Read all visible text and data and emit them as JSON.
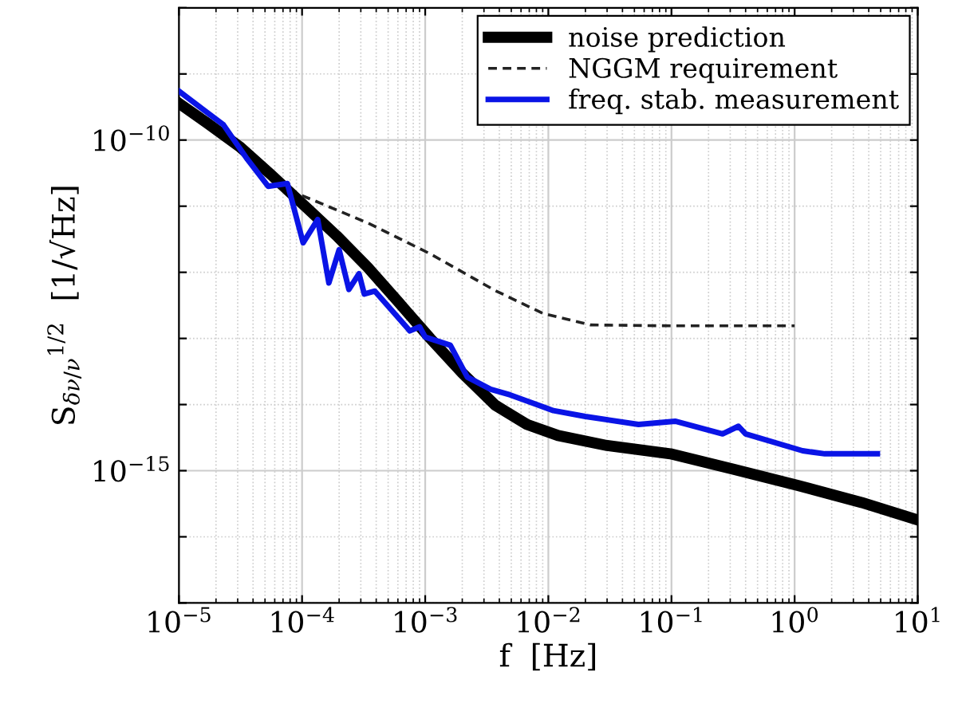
{
  "chart_data": {
    "type": "line",
    "xlabel": "f  [Hz]",
    "ylabel": "S$_{δν/ν}$$^{1/2}$  [1/√Hz]",
    "log": "xy",
    "grid": true,
    "legend": "top right",
    "xlim": [
      1e-05,
      10
    ],
    "ylim": [
      1e-17,
      1e-08
    ],
    "xticks": [
      {
        "value": 1e-05,
        "label": "10$^{−5}$"
      },
      {
        "value": 0.0001,
        "label": "10$^{−4}$"
      },
      {
        "value": 0.001,
        "label": "10$^{−3}$"
      },
      {
        "value": 0.01,
        "label": "10$^{−2}$"
      },
      {
        "value": 0.1,
        "label": "10$^{−1}$"
      },
      {
        "value": 1,
        "label": "10$^{0}$"
      },
      {
        "value": 10,
        "label": "10$^{1}$"
      }
    ],
    "yticks": [
      {
        "value": 1e-17,
        "label": null
      },
      {
        "value": 1e-16,
        "label": null
      },
      {
        "value": 1e-15,
        "label": "10$^{−15}$"
      },
      {
        "value": 1e-14,
        "label": null
      },
      {
        "value": 1e-13,
        "label": null
      },
      {
        "value": 1e-12,
        "label": null
      },
      {
        "value": 1e-11,
        "label": null
      },
      {
        "value": 1e-10,
        "label": "10$^{−10}$"
      },
      {
        "value": 1e-09,
        "label": null
      },
      {
        "value": 1e-08,
        "label": null
      }
    ],
    "series": [
      {
        "name": "noise prediction",
        "color": "#000000",
        "line_style": "solid",
        "x": [
          1e-05,
          1.7e-05,
          3.1e-05,
          5.6e-05,
          0.0001,
          0.00019,
          0.00034,
          0.00061,
          0.0011,
          0.002,
          0.0037,
          0.0067,
          0.012,
          0.03,
          0.098,
          0.32,
          1.06,
          3.5,
          10
        ],
        "values": [
          3.6e-10,
          1.8e-10,
          8e-11,
          3e-11,
          1.1e-11,
          3.6e-12,
          1.2e-12,
          3.5e-13,
          1e-13,
          3e-14,
          9.8e-15,
          5e-15,
          3.4e-15,
          2.4e-15,
          1.8e-15,
          1.05e-15,
          6e-16,
          3.3e-16,
          1.8e-16
        ]
      },
      {
        "name": "NGGM requirement",
        "color": "#222222",
        "line_style": "dashed",
        "x": [
          0.0001,
          0.00034,
          0.0011,
          0.0037,
          0.009,
          0.022,
          0.1,
          1
        ],
        "values": [
          1.45e-11,
          5.6e-12,
          1.9e-12,
          5.3e-13,
          2.4e-13,
          1.6e-13,
          1.55e-13,
          1.55e-13
        ]
      },
      {
        "name": "freq. stab. measurement",
        "color": "#0a14e6",
        "line_style": "solid",
        "x": [
          1e-05,
          2.3e-05,
          3.6e-05,
          5.3e-05,
          7.6e-05,
          0.000102,
          0.000134,
          0.000165,
          0.0002,
          0.00024,
          0.00029,
          0.00032,
          0.00039,
          0.00075,
          0.0009,
          0.001,
          0.0016,
          0.0022,
          0.0034,
          0.0049,
          0.011,
          0.02,
          0.054,
          0.107,
          0.26,
          0.35,
          0.4,
          1.16,
          1.76,
          4.7
        ],
        "values": [
          5.5e-10,
          1.7e-10,
          5.1e-11,
          2e-11,
          2.2e-11,
          2.8e-12,
          6.3e-12,
          6.9e-13,
          2.2e-12,
          5.5e-13,
          9.5e-13,
          4.7e-13,
          5.2e-13,
          1.3e-13,
          1.5e-13,
          1.05e-13,
          7.9e-14,
          2.6e-14,
          1.7e-14,
          1.4e-14,
          8.1e-15,
          6.6e-15,
          5e-15,
          5.6e-15,
          3.6e-15,
          4.7e-15,
          3.6e-15,
          2e-15,
          1.8e-15,
          1.8e-15
        ]
      }
    ]
  }
}
